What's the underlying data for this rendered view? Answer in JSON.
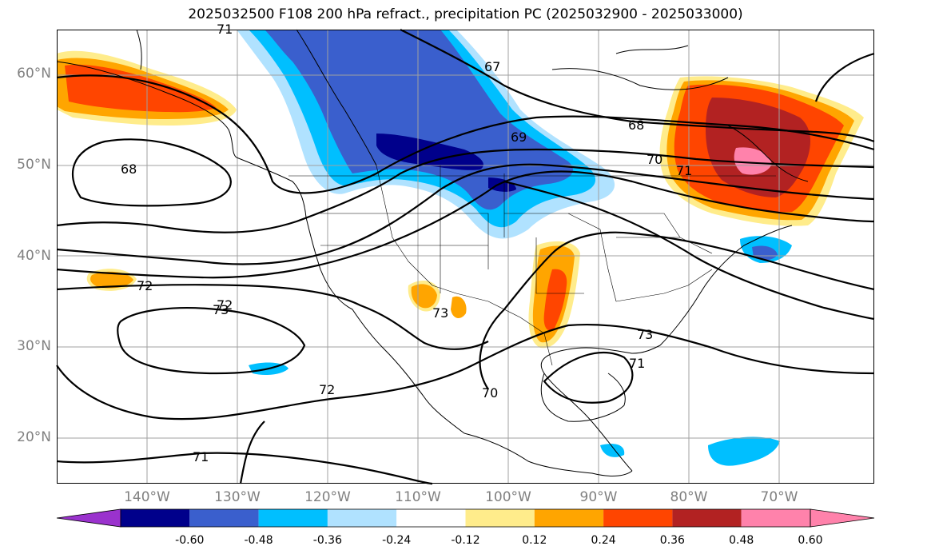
{
  "title": "2025032500 F108 200 hPa refract., precipitation PC (2025032900 - 2025033000)",
  "map": {
    "lat_labels": [
      "60°N",
      "50°N",
      "40°N",
      "30°N",
      "20°N"
    ],
    "lon_labels": [
      "140°W",
      "130°W",
      "120°W",
      "110°W",
      "100°W",
      "90°W",
      "80°W",
      "70°W"
    ],
    "contour_labels": [
      "67",
      "68",
      "68",
      "69",
      "70",
      "71",
      "72",
      "72",
      "72",
      "73",
      "73",
      "73",
      "71",
      "71",
      "70",
      "71"
    ]
  },
  "colorbar": {
    "tick_labels": [
      "-0.60",
      "-0.48",
      "-0.36",
      "-0.24",
      "-0.12",
      "0.12",
      "0.24",
      "0.36",
      "0.48",
      "0.60"
    ],
    "colors": [
      "#9a32cd",
      "#00008b",
      "#3a5fcd",
      "#00bfff",
      "#b0e2ff",
      "#ffffff",
      "#ffec8b",
      "#ffa500",
      "#ff4500",
      "#b22222",
      "#ff82ab",
      "#ff82ab"
    ]
  }
}
